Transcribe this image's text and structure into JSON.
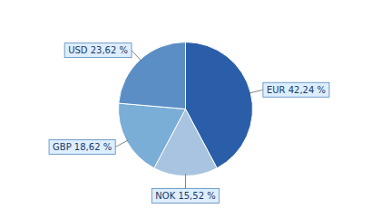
{
  "chart_data": {
    "type": "pie",
    "categories": [
      "EUR 42,24 %",
      "NOK 15,52 %",
      "GBP 18,62 %",
      "USD 23,62 %"
    ],
    "values": [
      42.24,
      15.52,
      18.62,
      23.62
    ],
    "colors": [
      "#2b5ea8",
      "#a8c4e0",
      "#7aaed6",
      "#5b8ec4"
    ]
  }
}
